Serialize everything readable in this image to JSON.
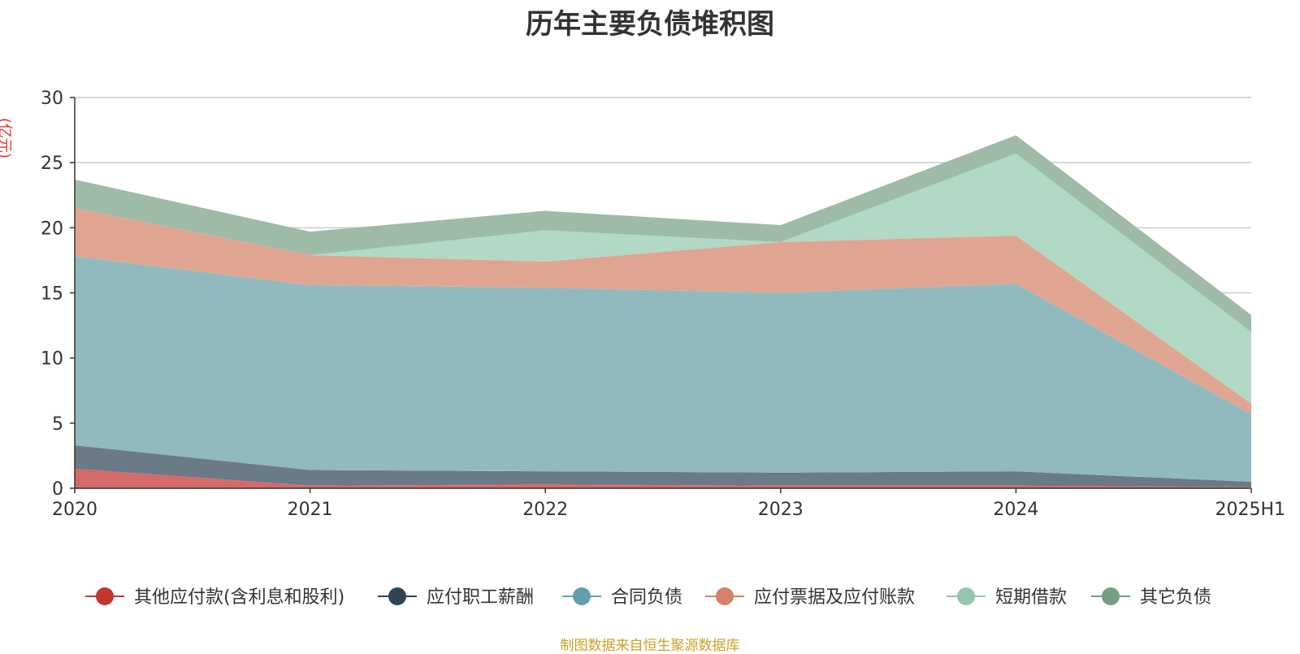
{
  "chart_data": {
    "type": "area",
    "stacked": true,
    "title": "历年主要负债堆积图",
    "unit_label": "(亿元)",
    "source": "制图数据来自恒生聚源数据库",
    "categories": [
      "2020",
      "2021",
      "2022",
      "2023",
      "2024",
      "2025H1"
    ],
    "ylim": [
      0,
      30
    ],
    "yticks": [
      0,
      5,
      10,
      15,
      20,
      25,
      30
    ],
    "grid": true,
    "legend_position": "bottom",
    "series": [
      {
        "name": "其他应付款(含利息和股利)",
        "color": "#c23531",
        "fill": "#d46b68",
        "values": [
          1.5,
          0.2,
          0.3,
          0.2,
          0.2,
          0.1
        ]
      },
      {
        "name": "应付职工薪酬",
        "color": "#2f4554",
        "fill": "#6b7a87",
        "values": [
          1.8,
          1.2,
          1.0,
          1.0,
          1.1,
          0.4
        ]
      },
      {
        "name": "合同负债",
        "color": "#61a0a8",
        "fill": "#91babf",
        "values": [
          14.5,
          14.2,
          14.1,
          13.8,
          14.4,
          5.2
        ]
      },
      {
        "name": "应付票据及应付账款",
        "color": "#d48265",
        "fill": "#e0a591",
        "values": [
          3.7,
          2.3,
          2.0,
          3.9,
          3.7,
          0.8
        ]
      },
      {
        "name": "短期借款",
        "color": "#91c7ae",
        "fill": "#b2d8c6",
        "values": [
          0.0,
          0.0,
          2.4,
          0.0,
          6.3,
          5.5
        ]
      },
      {
        "name": "其它负债",
        "color": "#749f83",
        "fill": "#9ebba8",
        "values": [
          2.2,
          1.8,
          1.5,
          1.3,
          1.4,
          1.3
        ]
      }
    ]
  }
}
